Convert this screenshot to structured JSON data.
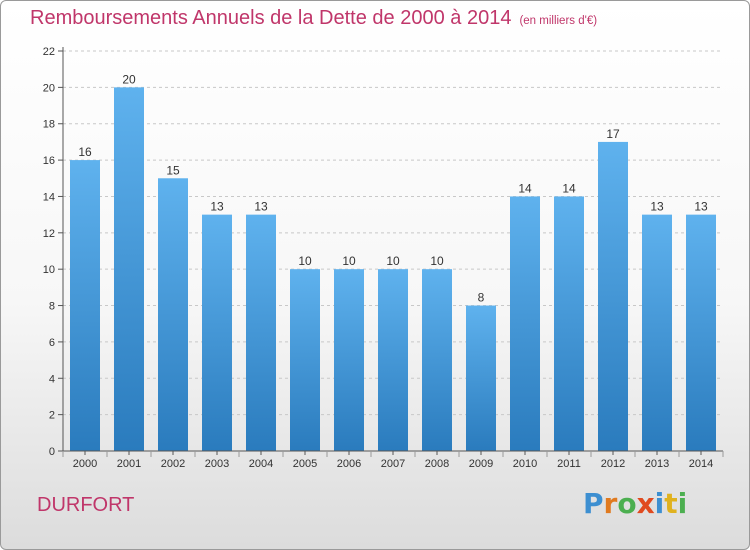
{
  "title": "Remboursements Annuels de la Dette de 2000 à 2014",
  "subtitle": "(en milliers d'€)",
  "commune": "DURFORT",
  "brand": {
    "letters": [
      "P",
      "r",
      "o",
      "x",
      "i",
      "t",
      "i"
    ],
    "colors": [
      "#3d8fd1",
      "#e07a1f",
      "#4caf50",
      "#e04a1f",
      "#3d8fd1",
      "#e0b21f",
      "#4caf50"
    ]
  },
  "chart_data": {
    "type": "bar",
    "title": "Remboursements Annuels de la Dette de 2000 à 2014",
    "subtitle": "(en milliers d'€)",
    "categories": [
      "2000",
      "2001",
      "2002",
      "2003",
      "2004",
      "2005",
      "2006",
      "2007",
      "2008",
      "2009",
      "2010",
      "2011",
      "2012",
      "2013",
      "2014"
    ],
    "values": [
      16,
      20,
      15,
      13,
      13,
      10,
      10,
      10,
      10,
      8,
      14,
      14,
      17,
      13,
      13
    ],
    "ylim": [
      0,
      22
    ],
    "yticks": [
      0,
      2,
      4,
      6,
      8,
      10,
      12,
      14,
      16,
      18,
      20,
      22
    ],
    "grid": true,
    "xlabel": "",
    "ylabel": "",
    "bar_color": "#3a93d8"
  }
}
